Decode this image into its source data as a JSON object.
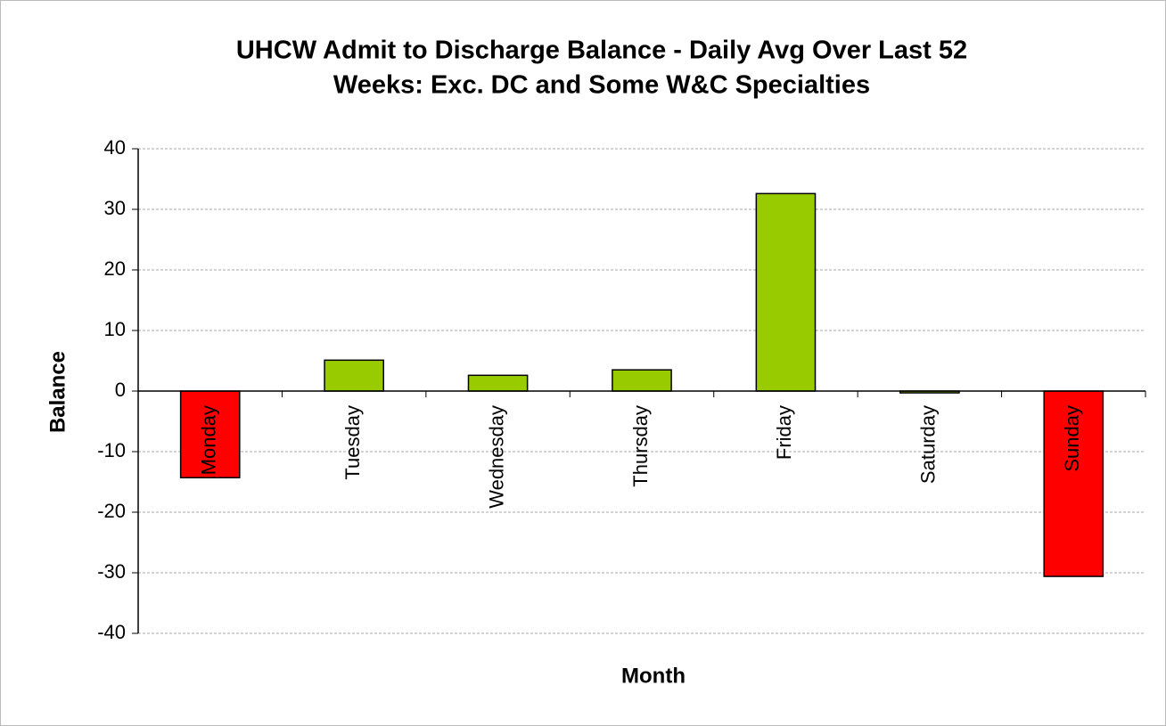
{
  "chart_data": {
    "type": "bar",
    "title": [
      "UHCW Admit to Discharge Balance - Daily Avg Over Last 52",
      "Weeks: Exc. DC and Some W&C Specialties"
    ],
    "x_label": "Month",
    "y_label": "Balance",
    "categories": [
      "Monday",
      "Tuesday",
      "Wednesday",
      "Thursday",
      "Friday",
      "Saturday",
      "Sunday"
    ],
    "values": [
      -14.3,
      5.1,
      2.6,
      3.5,
      32.6,
      -0.3,
      -30.6
    ],
    "colors": [
      "#ff0000",
      "#99cc00",
      "#99cc00",
      "#99cc00",
      "#99cc00",
      "#99cc00",
      "#ff0000"
    ],
    "ylim": [
      -40,
      40
    ],
    "yticks": [
      -40,
      -30,
      -20,
      -10,
      0,
      10,
      20,
      30,
      40
    ],
    "grid": true
  }
}
